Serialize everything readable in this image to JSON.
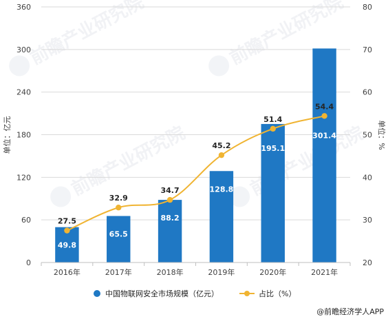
{
  "chart_data": {
    "type": "bar",
    "categories": [
      "2016年",
      "2017年",
      "2018年",
      "2019年",
      "2020年",
      "2021年"
    ],
    "series": [
      {
        "name": "中国物联网安全市场规模（亿元）",
        "type": "bar",
        "axis": "left",
        "color": "#1f78c4",
        "values": [
          49.8,
          65.5,
          88.2,
          128.8,
          195.1,
          301.4
        ],
        "labels": [
          "49.8",
          "65.5",
          "88.2",
          "128.8",
          "195.1",
          "301.4"
        ]
      },
      {
        "name": "占比（%）",
        "type": "line",
        "axis": "right",
        "color": "#f0b432",
        "smooth": true,
        "values": [
          27.5,
          32.9,
          34.7,
          45.2,
          51.4,
          54.4
        ],
        "labels": [
          "27.5",
          "32.9",
          "34.7",
          "45.2",
          "51.4",
          "54.4"
        ]
      }
    ],
    "ylabel": "单位：亿元",
    "y2label": "单位：%",
    "ylim": [
      0,
      360
    ],
    "y2lim": [
      20,
      80
    ],
    "yticks": [
      "0",
      "60",
      "120",
      "180",
      "240",
      "300",
      "360"
    ],
    "y2ticks": [
      "20",
      "30",
      "40",
      "50",
      "60",
      "70",
      "80"
    ],
    "grid": true,
    "legend_position": "bottom-center",
    "watermark_text": "前瞻产业研究院",
    "source": "@前瞻经济学人APP"
  }
}
